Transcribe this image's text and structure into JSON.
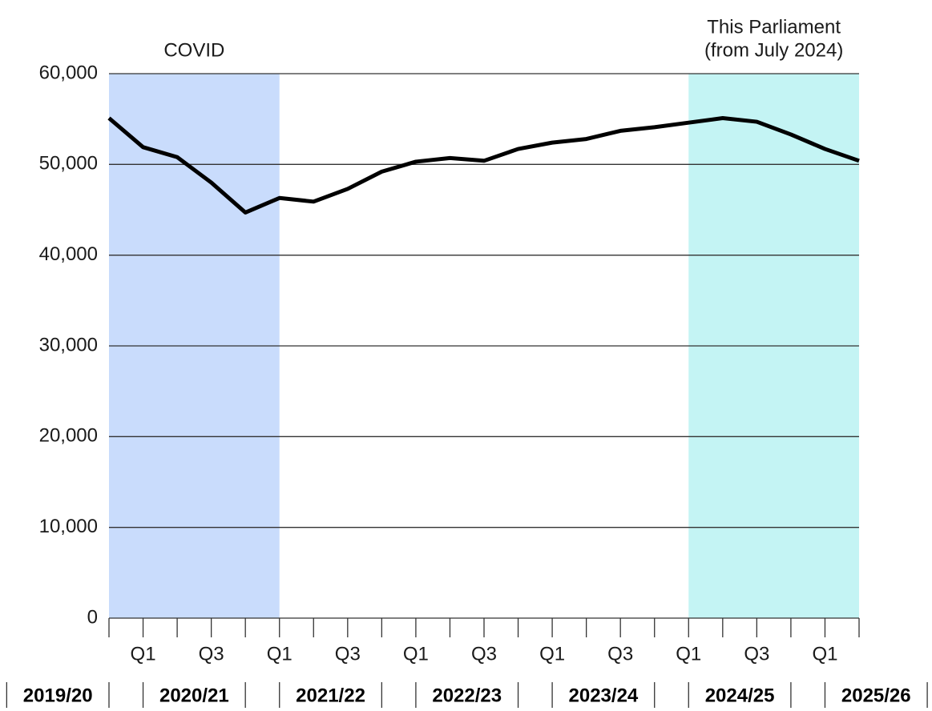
{
  "chart_data": {
    "type": "line",
    "categories": [
      null,
      "Q1",
      null,
      "Q3",
      null,
      "Q1",
      null,
      "Q3",
      null,
      "Q1",
      null,
      "Q3",
      null,
      "Q1",
      null,
      "Q3",
      null,
      "Q1",
      null,
      "Q3",
      null,
      "Q1",
      null
    ],
    "series": [
      {
        "color": "#000000",
        "values": [
          55100,
          51900,
          50800,
          48000,
          44700,
          46300,
          45900,
          47300,
          49200,
          50300,
          50700,
          50400,
          51700,
          52400,
          52800,
          53700,
          54100,
          54600,
          55100,
          54700,
          53300,
          51700,
          50400
        ]
      }
    ],
    "groups": [
      "2019/20",
      "2020/21",
      "2021/22",
      "2022/23",
      "2023/24",
      "2024/25",
      "2025/26"
    ],
    "regions": [
      {
        "label": [
          "COVID"
        ],
        "from": 0,
        "to": 5,
        "color": "#c9dcfc"
      },
      {
        "label": [
          "This Parliament",
          "(from July 2024)"
        ],
        "from": 17,
        "to": 22,
        "color": "#c4f4f4"
      }
    ],
    "ylim": [
      0,
      60000
    ],
    "yticks": [
      0,
      {
        "value": 10000,
        "label": "10,000"
      },
      {
        "value": 20000,
        "label": "20,000"
      },
      {
        "value": 30000,
        "label": "30,000"
      },
      {
        "value": 40000,
        "label": "40,000"
      },
      {
        "value": 50000,
        "label": "50,000"
      },
      {
        "value": 60000,
        "label": "60,000"
      }
    ],
    "grid": true
  }
}
